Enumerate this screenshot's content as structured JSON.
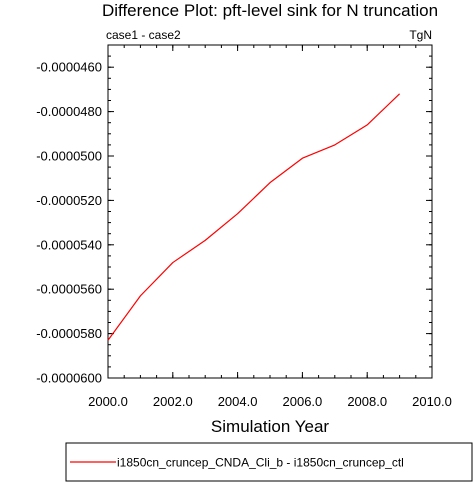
{
  "chart_data": {
    "type": "line",
    "title": "Difference Plot: pft-level sink for N truncation",
    "left_label": "case1 - case2",
    "right_label": "TgN",
    "xlabel": "Simulation Year",
    "ylabel": "",
    "xlim": [
      2000.0,
      2010.0
    ],
    "ylim": [
      -6e-05,
      -4.5e-05
    ],
    "x_ticks": [
      2000.0,
      2002.0,
      2004.0,
      2006.0,
      2008.0,
      2010.0
    ],
    "x_tick_labels": [
      "2000.0",
      "2002.0",
      "2004.0",
      "2006.0",
      "2008.0",
      "2010.0"
    ],
    "y_ticks": [
      -4.6e-05,
      -4.8e-05,
      -5e-05,
      -5.2e-05,
      -5.4e-05,
      -5.6e-05,
      -5.8e-05,
      -6e-05
    ],
    "y_tick_labels": [
      "-0.0000460",
      "-0.0000480",
      "-0.0000500",
      "-0.0000520",
      "-0.0000540",
      "-0.0000560",
      "-0.0000580",
      "-0.0000600"
    ],
    "grid": false,
    "legend_position": "bottom",
    "series": [
      {
        "name": "i1850cn_cruncep_CNDA_Cli_b - i1850cn_cruncep_ctl",
        "color": "#ff0000",
        "x": [
          2000,
          2001,
          2002,
          2003,
          2004,
          2005,
          2006,
          2007,
          2008,
          2009
        ],
        "values": [
          -5.83e-05,
          -5.63e-05,
          -5.48e-05,
          -5.38e-05,
          -5.26e-05,
          -5.12e-05,
          -5.01e-05,
          -4.95e-05,
          -4.86e-05,
          -4.72e-05
        ]
      }
    ]
  }
}
